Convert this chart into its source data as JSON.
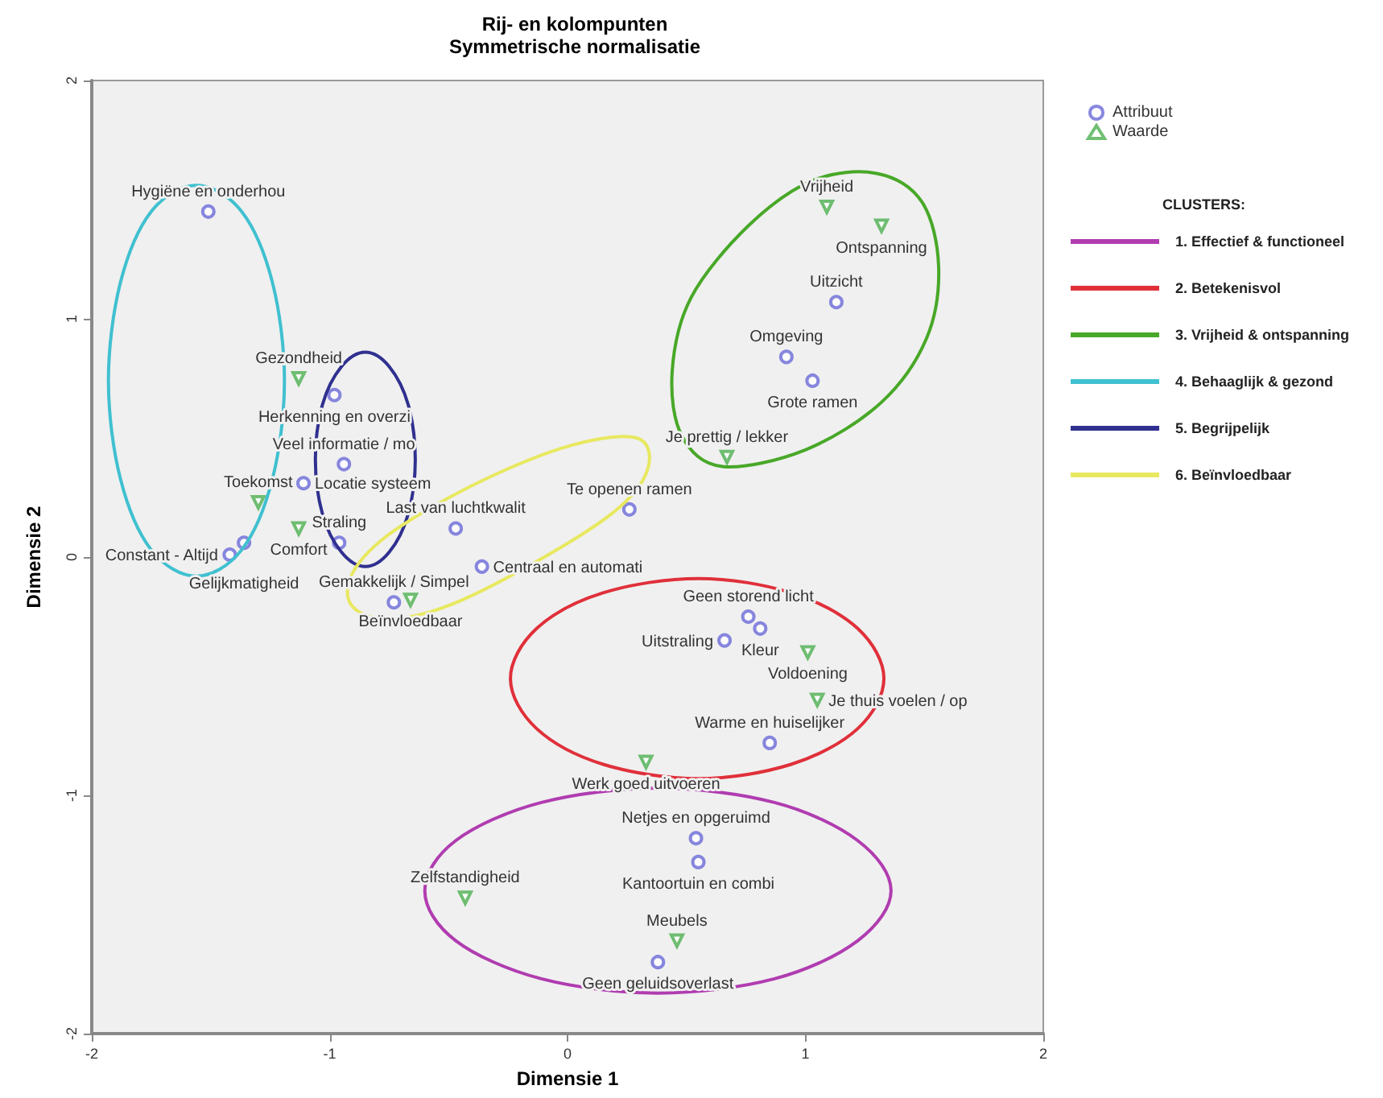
{
  "chart_data": {
    "type": "scatter",
    "title": "Rij- en kolompunten",
    "subtitle": "Symmetrische normalisatie",
    "xlabel": "Dimensie 1",
    "ylabel": "Dimensie 2",
    "legend": "right",
    "grid": false,
    "xlim": [
      -2,
      2
    ],
    "ylim": [
      -2,
      2
    ],
    "xticks": [
      -2,
      -1,
      0,
      1,
      2
    ],
    "yticks": [
      -2,
      -1,
      0,
      1,
      2
    ],
    "series": [
      {
        "name": "Attribuut",
        "color": "#6a6ad8",
        "marker": "circle",
        "x": [
          -1.51,
          -0.98,
          -0.94,
          -1.11,
          -0.47,
          -0.96,
          -1.36,
          -1.42,
          -0.73,
          -0.36,
          0.26,
          1.13,
          0.92,
          1.03,
          0.76,
          0.81,
          0.66,
          0.85,
          0.54,
          0.55,
          0.38
        ],
        "values": [
          1.45,
          0.68,
          0.39,
          0.31,
          0.12,
          0.06,
          0.06,
          0.01,
          -0.19,
          -0.04,
          0.2,
          1.07,
          0.84,
          0.74,
          -0.25,
          -0.3,
          -0.35,
          -0.78,
          -1.18,
          -1.28,
          -1.7
        ]
      },
      {
        "name": "Waarde",
        "color": "#4caf50",
        "marker": "triangle",
        "x": [
          -1.13,
          -1.3,
          -1.13,
          -0.66,
          1.09,
          1.32,
          0.67,
          1.01,
          1.05,
          0.33,
          -0.43,
          0.46
        ],
        "values": [
          0.75,
          0.23,
          0.12,
          -0.18,
          1.47,
          1.39,
          0.42,
          -0.4,
          -0.6,
          -0.86,
          -1.43,
          -1.61
        ]
      }
    ],
    "annotations": [
      "CLUSTERS:",
      "1. Effectief & functioneel",
      "2. Betekenisvol",
      "3. Vrijheid & ontspanning",
      "4. Behaaglijk & gezond",
      "5. Begrijpelijk",
      "6. Beïnvloedbaar",
      {
        "text": "Hygiëne en onderhou",
        "x": -1.51,
        "y": 1.45
      },
      {
        "text": "Herkenning en overzi",
        "x": -0.98,
        "y": 0.68
      },
      {
        "text": "Veel informatie / mo",
        "x": -0.94,
        "y": 0.39
      },
      {
        "text": "Locatie systeem",
        "x": -1.11,
        "y": 0.31
      },
      {
        "text": "Last van luchtkwalit",
        "x": -0.47,
        "y": 0.12
      },
      {
        "text": "Straling",
        "x": -0.96,
        "y": 0.06
      },
      {
        "text": "Gelijkmatigheid",
        "x": -1.36,
        "y": 0.06
      },
      {
        "text": "Constant - Altijd",
        "x": -1.42,
        "y": 0.01
      },
      {
        "text": "Gemakkelijk / Simpel",
        "x": -0.73,
        "y": -0.19
      },
      {
        "text": "Centraal en automati",
        "x": -0.36,
        "y": -0.04
      },
      {
        "text": "Te openen ramen",
        "x": 0.26,
        "y": 0.2
      },
      {
        "text": "Uitzicht",
        "x": 1.13,
        "y": 1.07
      },
      {
        "text": "Omgeving",
        "x": 0.92,
        "y": 0.84
      },
      {
        "text": "Grote ramen",
        "x": 1.03,
        "y": 0.74
      },
      {
        "text": "Geen storend licht",
        "x": 0.76,
        "y": -0.25
      },
      {
        "text": "Kleur",
        "x": 0.81,
        "y": -0.3
      },
      {
        "text": "Uitstraling",
        "x": 0.66,
        "y": -0.35
      },
      {
        "text": "Warme en huiselijker",
        "x": 0.85,
        "y": -0.78
      },
      {
        "text": "Netjes en opgeruimd",
        "x": 0.54,
        "y": -1.18
      },
      {
        "text": "Kantoortuin en combi",
        "x": 0.55,
        "y": -1.28
      },
      {
        "text": "Geen geluidsoverlast",
        "x": 0.38,
        "y": -1.7
      },
      {
        "text": "Gezondheid",
        "x": -1.13,
        "y": 0.75
      },
      {
        "text": "Toekomst",
        "x": -1.3,
        "y": 0.23
      },
      {
        "text": "Comfort",
        "x": -1.13,
        "y": 0.12
      },
      {
        "text": "Beïnvloedbaar",
        "x": -0.66,
        "y": -0.18
      },
      {
        "text": "Vrijheid",
        "x": 1.09,
        "y": 1.47
      },
      {
        "text": "Ontspanning",
        "x": 1.32,
        "y": 1.39
      },
      {
        "text": "Je prettig / lekker",
        "x": 0.67,
        "y": 0.42
      },
      {
        "text": "Voldoening",
        "x": 1.01,
        "y": -0.4
      },
      {
        "text": "Je thuis voelen / op",
        "x": 1.05,
        "y": -0.6
      },
      {
        "text": "Werk goed uitvoeren",
        "x": 0.33,
        "y": -0.86
      },
      {
        "text": "Zelfstandigheid",
        "x": -0.43,
        "y": -1.43
      },
      {
        "text": "Meubels",
        "x": 0.46,
        "y": -1.61
      }
    ]
  }
}
